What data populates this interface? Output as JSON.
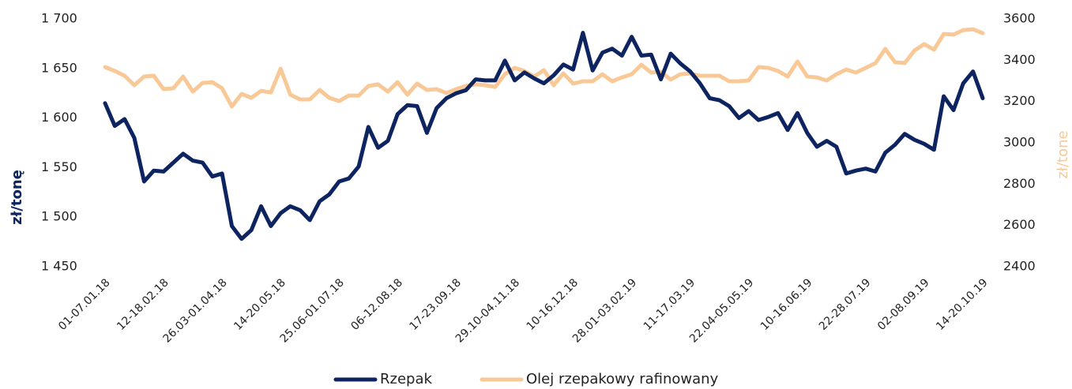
{
  "chart_data": {
    "type": "line",
    "categories": [
      "01-07.01.18",
      null,
      null,
      null,
      null,
      null,
      "12-18.02.18",
      null,
      null,
      null,
      null,
      null,
      "26.03-01.04.18",
      null,
      null,
      null,
      null,
      null,
      "14-20.05.18",
      null,
      null,
      null,
      null,
      null,
      "25.06-01.07.18",
      null,
      null,
      null,
      null,
      null,
      "06-12.08.18",
      null,
      null,
      null,
      null,
      null,
      "17-23.09.18",
      null,
      null,
      null,
      null,
      null,
      "29.10-04.11.18",
      null,
      null,
      null,
      null,
      null,
      "10-16.12.18",
      null,
      null,
      null,
      null,
      null,
      "28.01-03.02.19",
      null,
      null,
      null,
      null,
      null,
      "11-17.03.19",
      null,
      null,
      null,
      null,
      null,
      "22.04-05.05.19",
      null,
      null,
      null,
      null,
      null,
      "10-16.06.19",
      null,
      null,
      null,
      null,
      null,
      "22-28.07.19",
      null,
      null,
      null,
      null,
      null,
      "02-08.09.19",
      null,
      null,
      null,
      null,
      null,
      "14-20.10.19"
    ],
    "series": [
      {
        "name": "Rzepak",
        "color": "#0d2461",
        "values": [
          1615,
          1592,
          1599,
          1580,
          1536,
          1547,
          1546,
          1555,
          1564,
          1557,
          1555,
          1541,
          1544,
          1491,
          1478,
          1487,
          1511,
          1491,
          1504,
          1511,
          1507,
          1497,
          1516,
          1523,
          1536,
          1539,
          1551,
          1591,
          1570,
          1577,
          1604,
          1613,
          1612,
          1585,
          1610,
          1620,
          1625,
          1628,
          1639,
          1638,
          1638,
          1658,
          1638,
          1646,
          1640,
          1635,
          1643,
          1654,
          1649,
          1686,
          1648,
          1666,
          1670,
          1663,
          1682,
          1663,
          1664,
          1639,
          1665,
          1655,
          1647,
          1635,
          1620,
          1618,
          1612,
          1600,
          1607,
          1598,
          1601,
          1605,
          1588,
          1605,
          1585,
          1571,
          1577,
          1571,
          1544,
          1547,
          1549,
          1546,
          1565,
          1573,
          1584,
          1578,
          1574,
          1568,
          1622,
          1608,
          1635,
          1647,
          1620
        ]
      },
      {
        "name": "Olej rzepakowy rafinowany",
        "color": "#f9c897",
        "axis": "y2",
        "values": [
          3367,
          3348,
          3325,
          3279,
          3321,
          3325,
          3260,
          3264,
          3321,
          3248,
          3290,
          3294,
          3264,
          3176,
          3237,
          3218,
          3252,
          3244,
          3359,
          3233,
          3210,
          3210,
          3256,
          3218,
          3202,
          3229,
          3229,
          3275,
          3283,
          3248,
          3294,
          3233,
          3287,
          3256,
          3260,
          3241,
          3260,
          3275,
          3283,
          3279,
          3271,
          3332,
          3363,
          3348,
          3321,
          3352,
          3279,
          3336,
          3287,
          3298,
          3298,
          3332,
          3298,
          3317,
          3332,
          3378,
          3340,
          3344,
          3306,
          3332,
          3336,
          3325,
          3325,
          3325,
          3298,
          3298,
          3302,
          3367,
          3363,
          3348,
          3321,
          3394,
          3321,
          3317,
          3302,
          3332,
          3355,
          3340,
          3363,
          3386,
          3455,
          3390,
          3386,
          3447,
          3478,
          3451,
          3527,
          3524,
          3546,
          3550,
          3531
        ]
      }
    ],
    "ylabel": "zł/tonę",
    "y2label": "zł/tone",
    "ylim": [
      1450,
      1700
    ],
    "yticks": [
      {
        "value": 1450,
        "label": "1 450"
      },
      {
        "value": 1500,
        "label": "1 500"
      },
      {
        "value": 1550,
        "label": "1 550"
      },
      {
        "value": 1600,
        "label": "1 600"
      },
      {
        "value": 1650,
        "label": "1 650"
      },
      {
        "value": 1700,
        "label": "1 700"
      }
    ],
    "y2lim": [
      2400,
      3600
    ],
    "y2ticks": [
      2400,
      2600,
      2800,
      3000,
      3200,
      3400,
      3600
    ],
    "legend": "bottom",
    "grid": false
  }
}
